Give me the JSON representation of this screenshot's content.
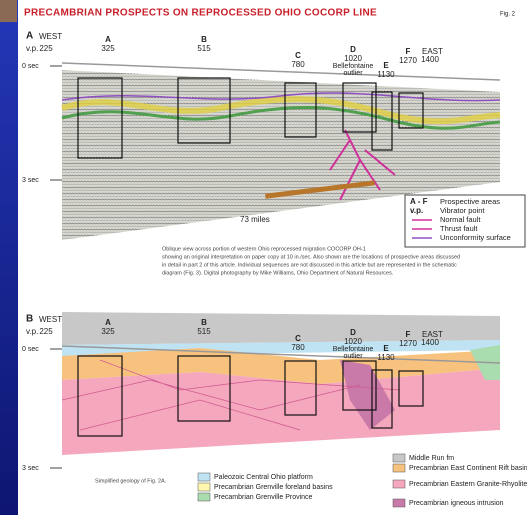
{
  "title": "Precambrian prospects on reprocessed Ohio COCORP line",
  "figure": "Fig. 2",
  "panels": [
    {
      "label": "A",
      "west": "WEST",
      "east": "EAST",
      "vp": "v.p.",
      "columns": [
        {
          "letter": null,
          "vp": "225"
        },
        {
          "letter": "A",
          "vp": "325"
        },
        {
          "letter": "B",
          "vp": "515"
        },
        {
          "letter": "C",
          "vp": "780"
        },
        {
          "letter": "D",
          "vp": "1020",
          "note": [
            "Bellefontaine",
            "outlier"
          ]
        },
        {
          "letter": "E",
          "vp": "1130"
        },
        {
          "letter": "F",
          "vp": "1270"
        },
        {
          "letter": null,
          "vp": "1400"
        }
      ],
      "top_time": "0 sec",
      "bottom_time": "3 sec",
      "distance": "73 miles",
      "legend": [
        {
          "key": "A - F",
          "text": "Prospective areas"
        },
        {
          "key": "v.p.",
          "text": "Vibrator point"
        },
        {
          "key": null,
          "text": "Normal fault"
        },
        {
          "key": null,
          "text": "Thrust fault"
        },
        {
          "key": null,
          "text": "Unconformity surface"
        }
      ],
      "caption": [
        "Oblique view across portion of western Ohio reprocessed migration COCORP OH-1",
        "showing an original interpretation on paper copy at 10 in./sec. Also shown are the locations of prospective areas discussed",
        "in detail in part 2 of this article. Individual sequences are not discussed in this article but are represented in the schematic",
        "diagram (Fig. 3). Digital photography by Mike Williams, Ohio Department of Natural Resources."
      ]
    },
    {
      "label": "B",
      "west": "WEST",
      "east": "EAST",
      "vp": "v.p.",
      "columns": [
        {
          "letter": null,
          "vp": "225"
        },
        {
          "letter": "A",
          "vp": "325"
        },
        {
          "letter": "B",
          "vp": "515"
        },
        {
          "letter": "C",
          "vp": "780"
        },
        {
          "letter": "D",
          "vp": "1020",
          "note": [
            "Bellefontaine",
            "outlier"
          ]
        },
        {
          "letter": "E",
          "vp": "1130"
        },
        {
          "letter": "F",
          "vp": "1270"
        },
        {
          "letter": null,
          "vp": "1400"
        }
      ],
      "top_time": "0 sec",
      "bottom_time": "3 sec",
      "caption": [
        "Simplified geology of Fig. 2A."
      ],
      "legend": [
        {
          "text": "Middle Run fm",
          "color": "#c8c8c8"
        },
        {
          "text": "Precambrian East Continent Rift basin",
          "color": "#f7c27e"
        },
        {
          "text": "Paleozoic Central Ohio platform",
          "color": "#bfe3f2"
        },
        {
          "text": "Precambrian Eastern Granite-Rhyolite Province",
          "color": "#f4a7bd"
        },
        {
          "text": "Precambrian Grenville foreland basins",
          "color": "#fff6b0"
        },
        {
          "text": "Precambrian igneous intrusion",
          "color": "#c97aa8"
        },
        {
          "text": "Precambrian Grenville Province",
          "color": "#a9dcae"
        }
      ]
    }
  ]
}
